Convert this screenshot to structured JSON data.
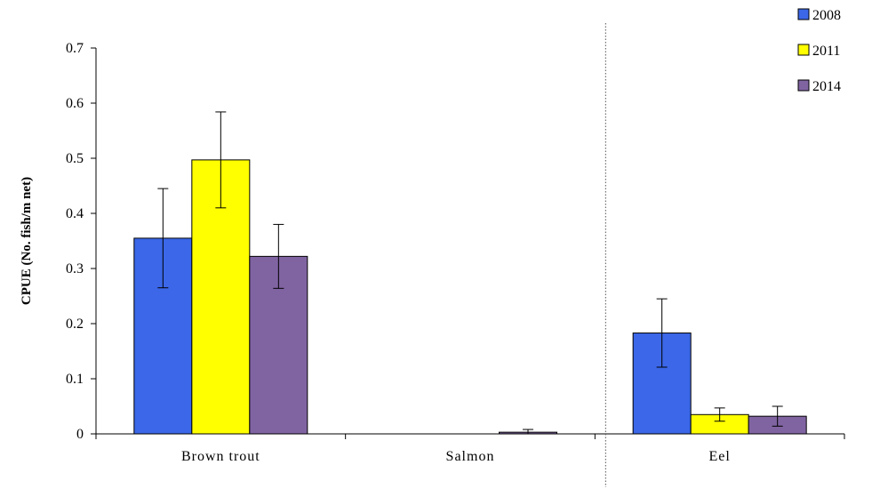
{
  "chart_data": {
    "type": "bar",
    "title": "",
    "xlabel": "",
    "ylabel": "CPUE (No. fish/m net)",
    "ylim": [
      0,
      0.7
    ],
    "yticks": [
      "0",
      "0.1",
      "0.2",
      "0.3",
      "0.4",
      "0.5",
      "0.6",
      "0.7"
    ],
    "categories": [
      "Brown trout",
      "Salmon",
      "Eel"
    ],
    "series": [
      {
        "name": "2008",
        "color": "#3b67e8",
        "values": [
          0.355,
          0.0,
          0.183
        ],
        "error": [
          0.09,
          0.0,
          0.062
        ]
      },
      {
        "name": "2011",
        "color": "#ffff00",
        "values": [
          0.497,
          0.0,
          0.035
        ],
        "error": [
          0.087,
          0.0,
          0.012
        ]
      },
      {
        "name": "2014",
        "color": "#8064a2",
        "values": [
          0.322,
          0.003,
          0.032
        ],
        "error": [
          0.058,
          0.005,
          0.018
        ]
      }
    ],
    "grid": false,
    "legend": "top-right",
    "separator_after_category": "Salmon"
  }
}
